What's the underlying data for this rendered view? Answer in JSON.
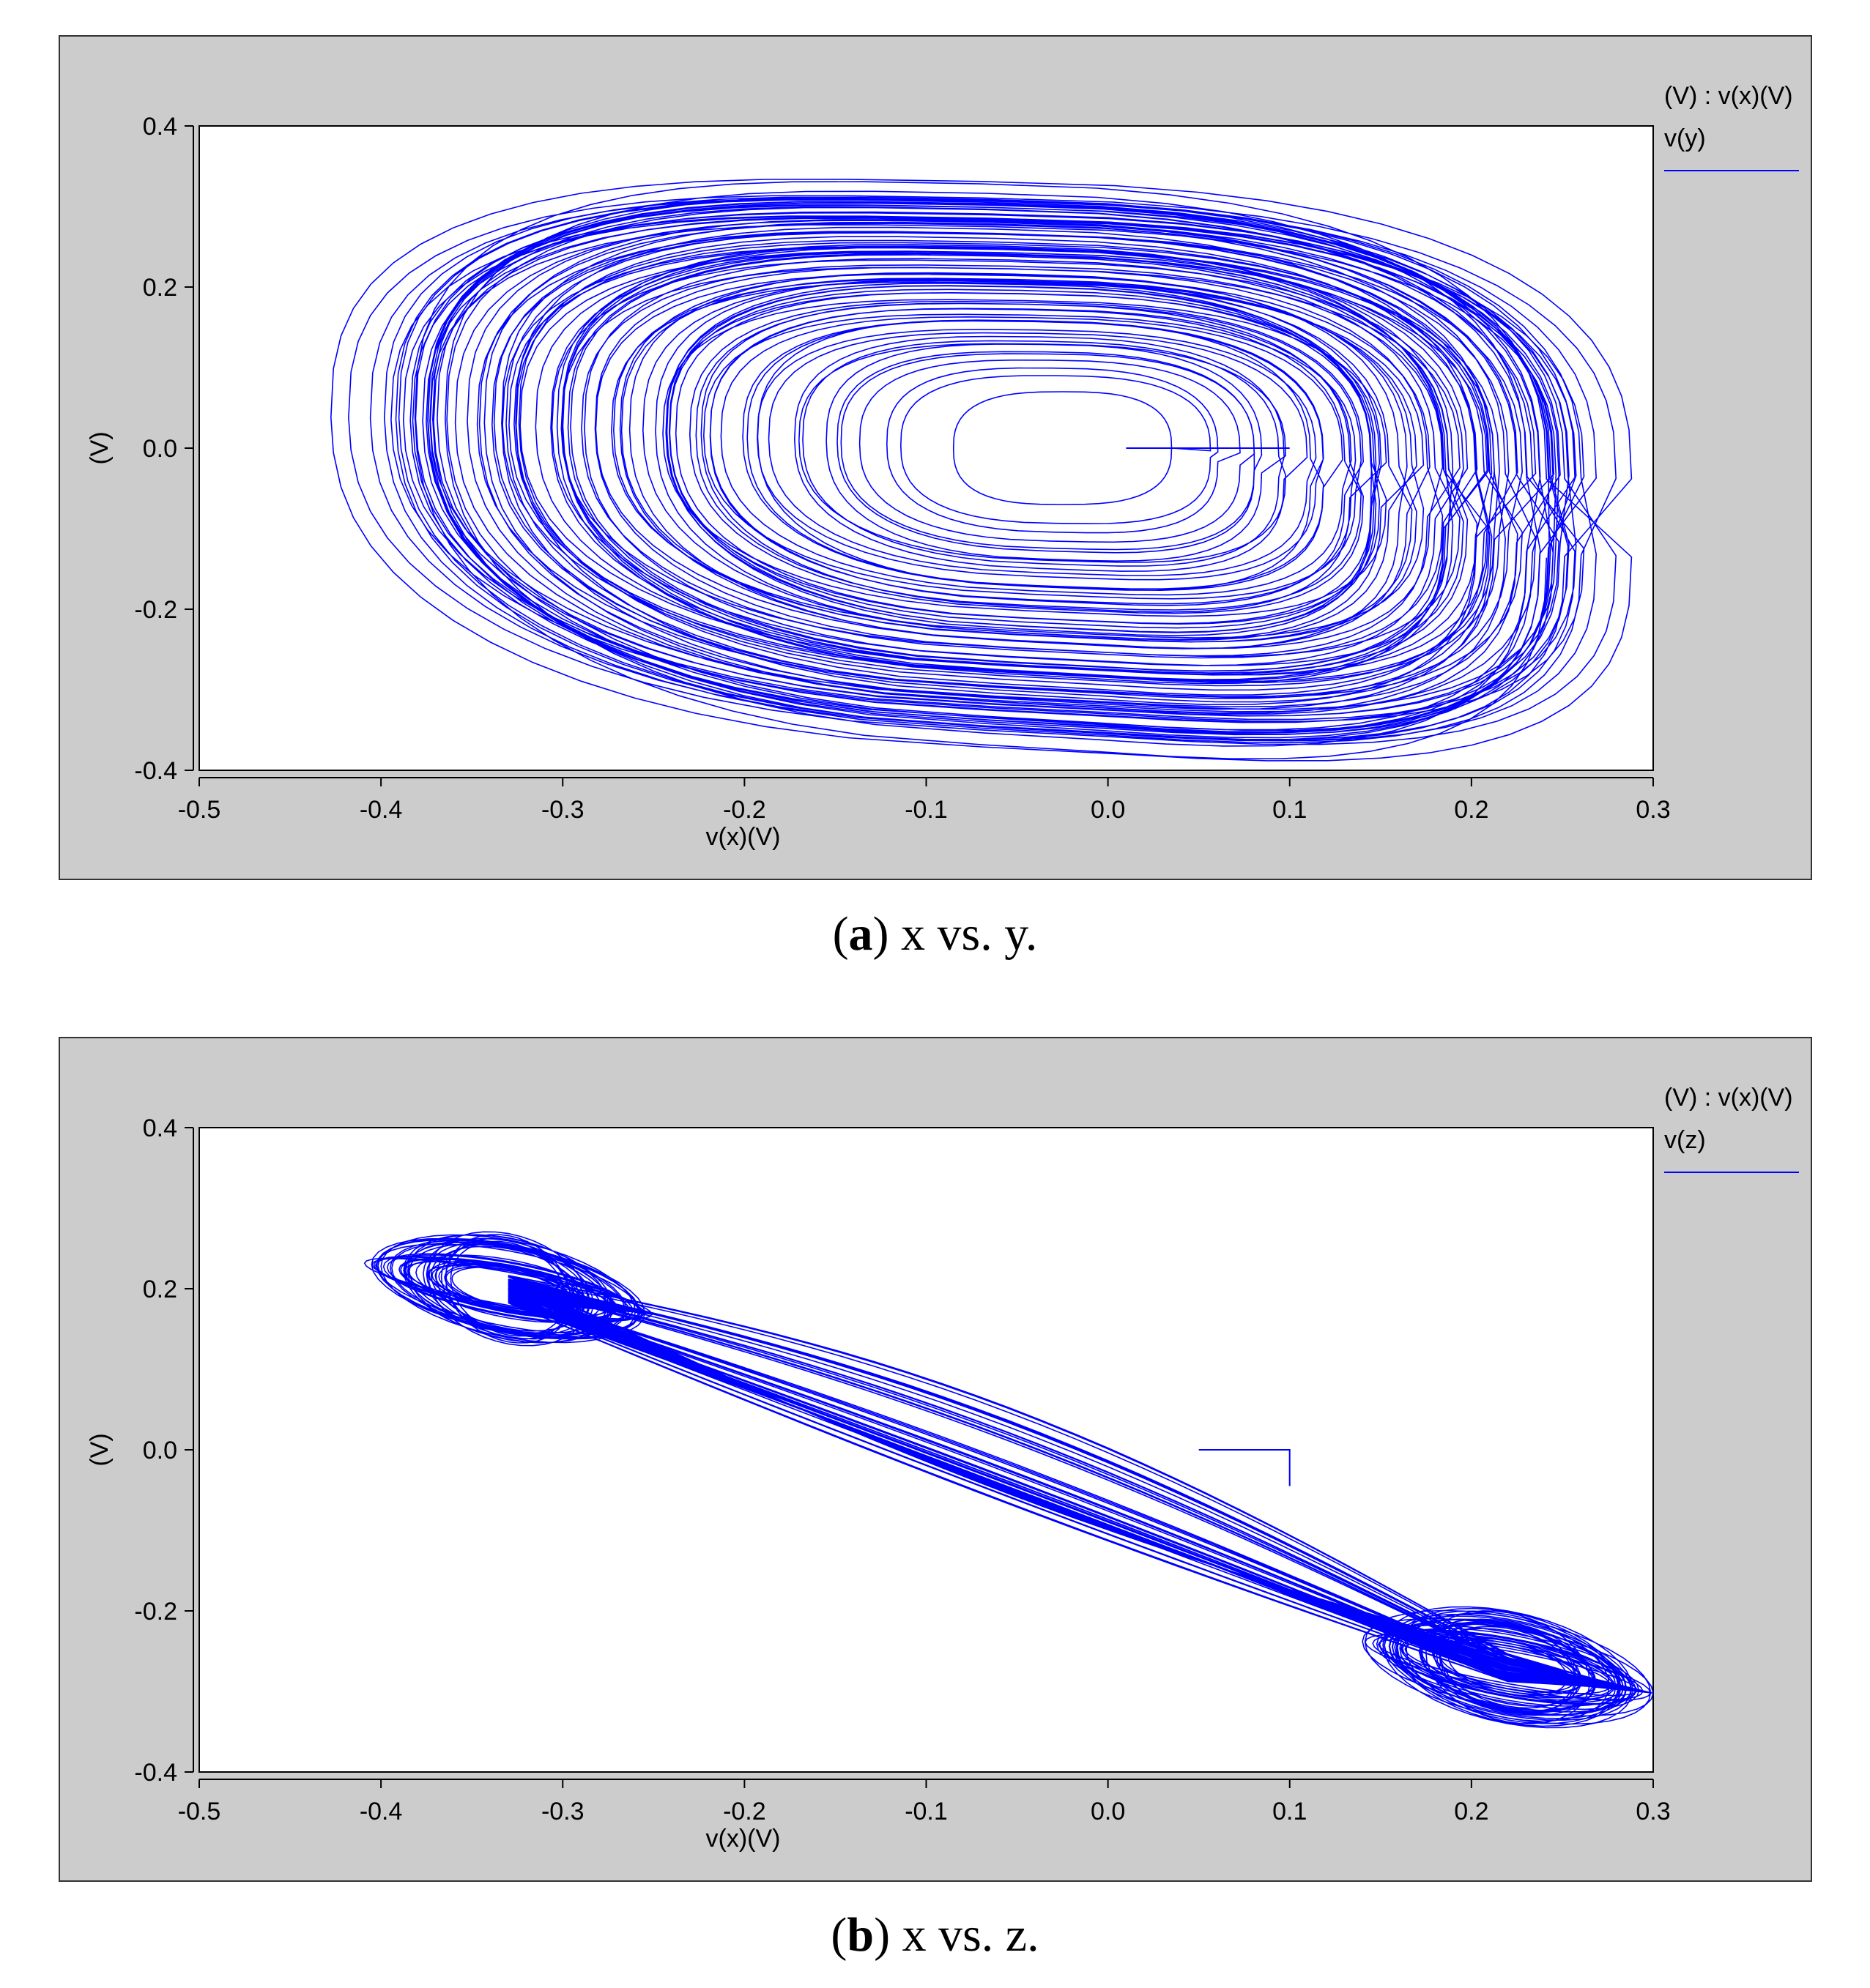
{
  "colors": {
    "panel_bg": "#cccccc",
    "plot_bg": "#ffffff",
    "trace": "#0000ff",
    "axis": "#000000"
  },
  "figures": [
    {
      "caption_label": "a",
      "caption_text": "x vs. y.",
      "legend_header": "(V) : v(x)(V)",
      "legend_series": "v(y)",
      "chart_data": {
        "type": "line",
        "title": "",
        "xlabel": "v(x)(V)",
        "ylabel": "(V)",
        "xlim": [
          -0.5,
          0.3
        ],
        "ylim": [
          -0.4,
          0.4
        ],
        "xticks": [
          "-0.5",
          "-0.4",
          "-0.3",
          "-0.2",
          "-0.1",
          "0.0",
          "0.1",
          "0.2",
          "0.3"
        ],
        "yticks": [
          "-0.4",
          "-0.2",
          "0.0",
          "0.2",
          "0.4"
        ],
        "grid": false,
        "legend_position": "top-right, outside plot",
        "series": [
          {
            "name": "v(y)",
            "description_points": {
              "start": [
                [
                  0.01,
                  0.0
                ],
                [
                  0.1,
                  0.0
                ]
              ],
              "inner_loop": [
                [
                  0.04,
                  0.0
                ],
                [
                  0.02,
                  0.06
                ],
                [
                  -0.02,
                  0.07
                ],
                [
                  -0.07,
                  0.05
                ],
                [
                  -0.09,
                  0.0
                ],
                [
                  -0.08,
                  -0.05
                ],
                [
                  -0.04,
                  -0.07
                ],
                [
                  0.01,
                  -0.06
                ],
                [
                  0.04,
                  -0.02
                ]
              ],
              "outer_envelope": [
                [
                  -0.4,
                  0.0
                ],
                [
                  -0.33,
                  0.13
                ],
                [
                  -0.2,
                  0.18
                ],
                [
                  -0.1,
                  0.22
                ],
                [
                  0.0,
                  0.25
                ],
                [
                  0.1,
                  0.22
                ],
                [
                  0.2,
                  0.15
                ],
                [
                  0.26,
                  0.05
                ],
                [
                  0.27,
                  0.0
                ],
                [
                  0.24,
                  -0.08
                ],
                [
                  0.15,
                  -0.17
                ],
                [
                  0.05,
                  -0.26
                ],
                [
                  -0.05,
                  -0.33
                ],
                [
                  -0.1,
                  -0.345
                ],
                [
                  -0.2,
                  -0.3
                ],
                [
                  -0.3,
                  -0.2
                ],
                [
                  -0.4,
                  -0.08
                ],
                [
                  -0.405,
                  -0.02
                ]
              ]
            }
          }
        ]
      }
    },
    {
      "caption_label": "b",
      "caption_text": "x vs. z.",
      "legend_header": "(V) : v(x)(V)",
      "legend_series": "v(z)",
      "chart_data": {
        "type": "line",
        "title": "",
        "xlabel": "v(x)(V)",
        "ylabel": "(V)",
        "xlim": [
          -0.5,
          0.3
        ],
        "ylim": [
          -0.4,
          0.4
        ],
        "xticks": [
          "-0.5",
          "-0.4",
          "-0.3",
          "-0.2",
          "-0.1",
          "0.0",
          "0.1",
          "0.2",
          "0.3"
        ],
        "yticks": [
          "-0.4",
          "-0.2",
          "0.0",
          "0.2",
          "0.4"
        ],
        "grid": false,
        "legend_position": "top-right, outside plot",
        "series": [
          {
            "name": "v(z)",
            "description_points": {
              "start": [
                [
                  0.05,
                  0.0
                ],
                [
                  0.1,
                  0.0
                ],
                [
                  0.1,
                  -0.045
                ]
              ],
              "upper_lobe_center": [
                -0.33,
                0.2
              ],
              "lower_lobe_center": [
                0.22,
                -0.27
              ],
              "outer_envelope": [
                [
                  -0.35,
                  0.29
                ],
                [
                  -0.4,
                  0.25
                ],
                [
                  -0.4,
                  0.2
                ],
                [
                  -0.33,
                  0.13
                ],
                [
                  -0.25,
                  0.04
                ],
                [
                  -0.1,
                  0.0
                ],
                [
                  0.0,
                  -0.06
                ],
                [
                  0.1,
                  -0.15
                ],
                [
                  0.2,
                  -0.3
                ],
                [
                  0.24,
                  -0.335
                ],
                [
                  0.27,
                  -0.3
                ],
                [
                  0.26,
                  -0.23
                ],
                [
                  0.15,
                  -0.12
                ],
                [
                  0.0,
                  -0.02
                ],
                [
                  -0.1,
                  0.08
                ],
                [
                  -0.2,
                  0.2
                ],
                [
                  -0.3,
                  0.27
                ],
                [
                  -0.35,
                  0.29
                ]
              ]
            }
          }
        ]
      }
    }
  ]
}
